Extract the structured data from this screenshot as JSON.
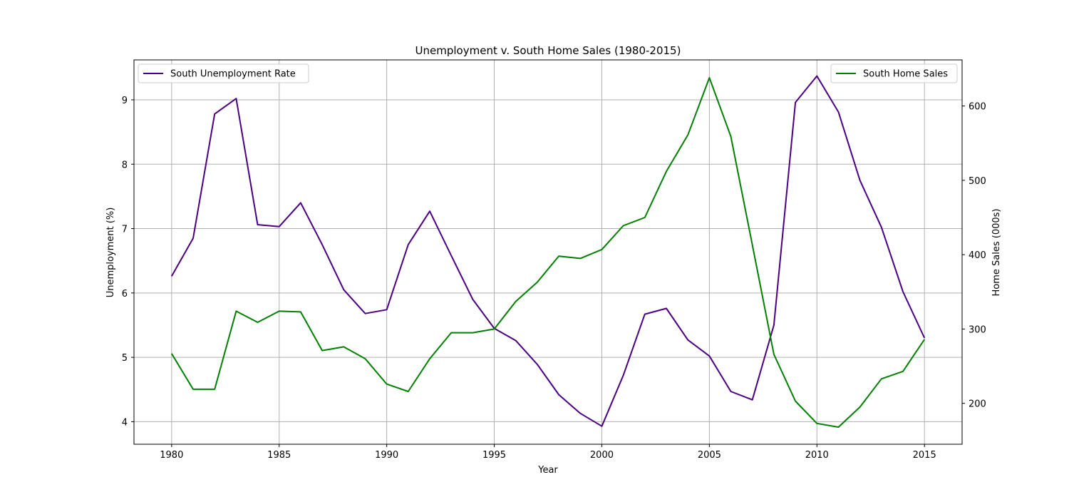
{
  "chart_data": {
    "type": "line",
    "title": "Unemployment v. South Home Sales (1980-2015)",
    "xlabel": "Year",
    "ylabel": "Unemployment (%)",
    "ylabel_right": "Home Sales (000s)",
    "xlim": [
      1978.25,
      2016.75
    ],
    "ylim": [
      3.65,
      9.62
    ],
    "ylim_right": [
      145,
      662
    ],
    "xticks": [
      1980,
      1985,
      1990,
      1995,
      2000,
      2005,
      2010,
      2015
    ],
    "yticks": [
      4,
      5,
      6,
      7,
      8,
      9
    ],
    "yticks_right": [
      200,
      300,
      400,
      500,
      600
    ],
    "grid": true,
    "x": [
      1980,
      1981,
      1982,
      1983,
      1984,
      1985,
      1986,
      1987,
      1988,
      1989,
      1990,
      1991,
      1992,
      1993,
      1994,
      1995,
      1996,
      1997,
      1998,
      1999,
      2000,
      2001,
      2002,
      2003,
      2004,
      2005,
      2006,
      2007,
      2008,
      2009,
      2010,
      2011,
      2012,
      2013,
      2014,
      2015
    ],
    "series": [
      {
        "name": "South Unemployment Rate",
        "axis": "left",
        "color": "#4b0082",
        "legend_position": "upper-left",
        "values": [
          6.26,
          6.85,
          8.78,
          9.02,
          7.06,
          7.03,
          7.4,
          6.75,
          6.05,
          5.68,
          5.74,
          6.75,
          7.27,
          6.58,
          5.9,
          5.45,
          5.26,
          4.89,
          4.42,
          4.13,
          3.93,
          4.72,
          5.67,
          5.76,
          5.27,
          5.02,
          4.47,
          4.34,
          5.5,
          8.96,
          9.37,
          8.81,
          7.75,
          7.02,
          6.02,
          5.3
        ]
      },
      {
        "name": "South Home Sales",
        "axis": "right",
        "color": "#008000",
        "legend_position": "upper-right",
        "values": [
          267,
          219,
          219,
          324,
          309,
          324,
          323,
          271,
          276,
          260,
          226,
          216,
          260,
          295,
          295,
          300,
          337,
          363,
          398,
          395,
          407,
          439,
          450,
          512,
          561,
          638,
          559,
          413,
          266,
          203,
          173,
          168,
          195,
          233,
          243,
          286
        ]
      }
    ]
  }
}
